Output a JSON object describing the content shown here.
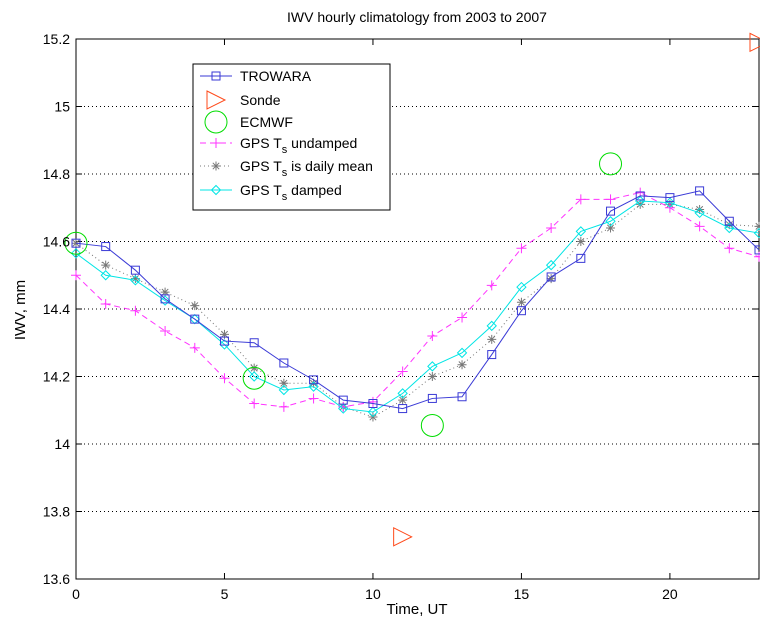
{
  "chart_data": {
    "type": "line",
    "title": "IWV hourly climatology from 2003 to 2007",
    "xlabel": "Time, UT",
    "ylabel": "IWV, mm",
    "xlim": [
      0,
      23
    ],
    "ylim": [
      13.6,
      15.2
    ],
    "xticks": [
      0,
      5,
      10,
      15,
      20
    ],
    "yticks": [
      13.6,
      13.8,
      14,
      14.2,
      14.4,
      14.6,
      14.8,
      15,
      15.2
    ],
    "ytick_labels": [
      "13.6",
      "13.8",
      "14",
      "14.2",
      "14.4",
      "14.6",
      "14.8",
      "15",
      "15.2"
    ],
    "xtick_labels": [
      "0",
      "5",
      "10",
      "15",
      "20"
    ],
    "grid": "horizontal dotted",
    "legend_position": "top-left",
    "series": [
      {
        "name": "TROWARA",
        "color": "#3a3ad6",
        "style": "solid",
        "marker": "square",
        "x": [
          0,
          1,
          2,
          3,
          4,
          5,
          6,
          7,
          8,
          9,
          10,
          11,
          12,
          13,
          14,
          15,
          16,
          17,
          18,
          19,
          20,
          21,
          22,
          23
        ],
        "values": [
          14.595,
          14.585,
          14.515,
          14.43,
          14.37,
          14.305,
          14.3,
          14.24,
          14.19,
          14.13,
          14.12,
          14.105,
          14.135,
          14.14,
          14.265,
          14.395,
          14.495,
          14.55,
          14.69,
          14.735,
          14.73,
          14.75,
          14.66,
          14.575
        ]
      },
      {
        "name": "Sonde",
        "color": "#ff4a1a",
        "style": "none",
        "marker": "triangle-right",
        "x": [
          11,
          23
        ],
        "values": [
          13.725,
          15.19
        ]
      },
      {
        "name": "ECMWF",
        "color": "#00dd00",
        "style": "none",
        "marker": "circle",
        "x": [
          0,
          6,
          12,
          18
        ],
        "values": [
          14.595,
          14.195,
          14.055,
          14.83
        ]
      },
      {
        "name_main": "GPS T",
        "name_sub": "s",
        "name_rest": " undamped",
        "color": "#ff33ff",
        "style": "dashed",
        "marker": "plus",
        "x": [
          0,
          1,
          2,
          3,
          4,
          5,
          6,
          7,
          8,
          9,
          10,
          11,
          12,
          13,
          14,
          15,
          16,
          17,
          18,
          19,
          20,
          21,
          22,
          23
        ],
        "values": [
          14.5,
          14.415,
          14.395,
          14.335,
          14.285,
          14.195,
          14.12,
          14.11,
          14.135,
          14.11,
          14.125,
          14.215,
          14.32,
          14.375,
          14.47,
          14.58,
          14.64,
          14.725,
          14.725,
          14.745,
          14.7,
          14.645,
          14.58,
          14.555
        ]
      },
      {
        "name_main": "GPS T",
        "name_sub": "s",
        "name_rest": " is daily mean",
        "color": "#777777",
        "style": "dotted",
        "marker": "asterisk",
        "x": [
          0,
          1,
          2,
          3,
          4,
          5,
          6,
          7,
          8,
          9,
          10,
          11,
          12,
          13,
          14,
          15,
          16,
          17,
          18,
          19,
          20,
          21,
          22,
          23
        ],
        "values": [
          14.595,
          14.53,
          14.49,
          14.45,
          14.41,
          14.325,
          14.225,
          14.18,
          14.18,
          14.11,
          14.08,
          14.13,
          14.2,
          14.235,
          14.31,
          14.42,
          14.49,
          14.6,
          14.64,
          14.71,
          14.71,
          14.695,
          14.65,
          14.645
        ]
      },
      {
        "name_main": "GPS T",
        "name_sub": "s",
        "name_rest": " damped",
        "color": "#00e5e5",
        "style": "solid",
        "marker": "diamond",
        "x": [
          0,
          1,
          2,
          3,
          4,
          5,
          6,
          7,
          8,
          9,
          10,
          11,
          12,
          13,
          14,
          15,
          16,
          17,
          18,
          19,
          20,
          21,
          22,
          23
        ],
        "values": [
          14.565,
          14.5,
          14.485,
          14.425,
          14.37,
          14.295,
          14.2,
          14.16,
          14.17,
          14.105,
          14.095,
          14.15,
          14.23,
          14.27,
          14.35,
          14.465,
          14.53,
          14.63,
          14.66,
          14.72,
          14.715,
          14.685,
          14.64,
          14.625
        ]
      }
    ]
  }
}
